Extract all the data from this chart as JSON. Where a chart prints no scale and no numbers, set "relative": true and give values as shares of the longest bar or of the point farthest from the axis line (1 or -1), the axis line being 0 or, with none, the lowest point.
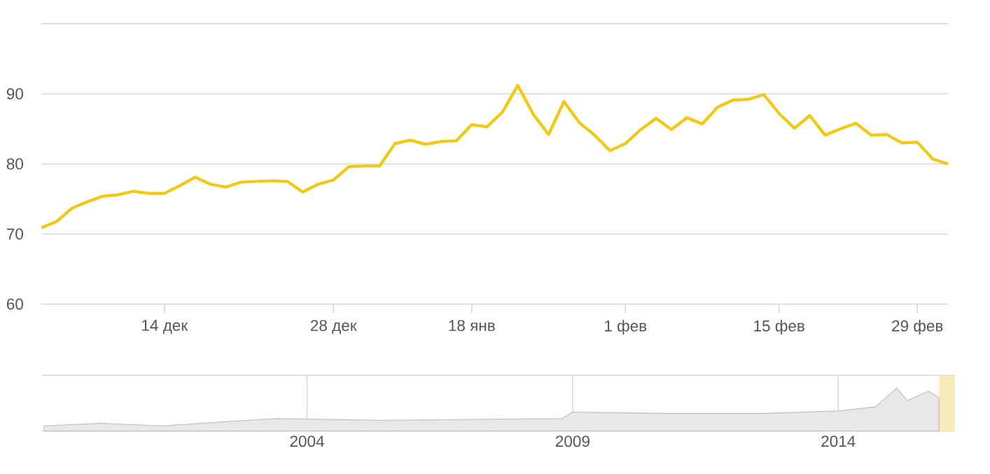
{
  "chart_data": [
    {
      "type": "line",
      "color": "#f2c811",
      "grid": "y",
      "ylim": [
        60,
        100
      ],
      "yticks": [
        60,
        70,
        80,
        90,
        {
          "value": 100,
          "label": null
        }
      ],
      "categories": [
        null,
        null,
        null,
        null,
        null,
        null,
        null,
        null,
        "14 дек",
        null,
        null,
        null,
        null,
        null,
        null,
        null,
        null,
        null,
        null,
        "28 дек",
        null,
        null,
        null,
        null,
        null,
        null,
        null,
        null,
        "18 янв",
        null,
        null,
        null,
        null,
        null,
        null,
        null,
        null,
        null,
        "1 фев",
        null,
        null,
        null,
        null,
        null,
        null,
        null,
        null,
        null,
        "15 фев",
        null,
        null,
        null,
        null,
        null,
        null,
        null,
        null,
        "29 фев",
        null,
        null
      ],
      "values": [
        70.9,
        71.8,
        73.7,
        74.6,
        75.4,
        75.6,
        76.1,
        75.8,
        75.8,
        76.9,
        78.1,
        77.1,
        76.7,
        77.4,
        77.5,
        77.6,
        77.5,
        76.0,
        77.1,
        77.7,
        79.6,
        79.7,
        79.7,
        82.9,
        83.4,
        82.8,
        83.2,
        83.3,
        85.6,
        85.3,
        87.4,
        91.2,
        87.1,
        84.2,
        88.9,
        85.9,
        84.1,
        81.9,
        82.9,
        84.9,
        86.5,
        84.9,
        86.6,
        85.7,
        88.1,
        89.1,
        89.2,
        89.9,
        87.2,
        85.1,
        86.9,
        84.1,
        85.0,
        85.8,
        84.1,
        84.2,
        83.0,
        83.1,
        80.7,
        80.0
      ]
    },
    {
      "type": "area",
      "relative": true,
      "color": "#e8e8e8",
      "grid": "x",
      "tick_labels": "x",
      "xlim": [
        1999.0,
        2016.2
      ],
      "xticks": [
        2004,
        2009,
        2014
      ],
      "bands": [
        {
          "axis": "x",
          "from": 2015.9,
          "to": 2016.2,
          "color": "#f7ebb8"
        }
      ],
      "x": [
        1999.05,
        2000.1,
        2001.3,
        2002.5,
        2003.4,
        2005.4,
        2008.8,
        2009.0,
        2010.8,
        2012.6,
        2014.0,
        2014.7,
        2015.1,
        2015.3,
        2015.7,
        2015.9
      ],
      "values": [
        0.12,
        0.18,
        0.12,
        0.22,
        0.29,
        0.25,
        0.29,
        0.44,
        0.41,
        0.41,
        0.47,
        0.56,
        1.0,
        0.71,
        0.93,
        0.78
      ]
    }
  ]
}
